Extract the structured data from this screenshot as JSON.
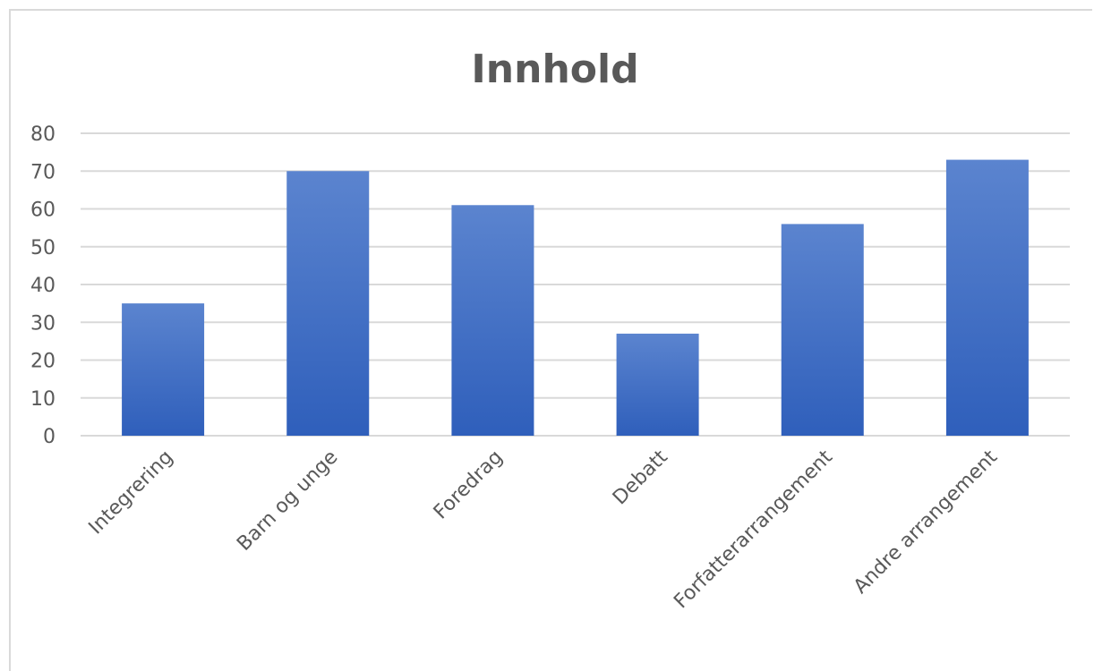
{
  "chart_data": {
    "type": "bar",
    "title": "Innhold",
    "categories": [
      "Integrering",
      "Barn og unge",
      "Foredrag",
      "Debatt",
      "Forfatterarrangement",
      "Andre arrangement"
    ],
    "values": [
      35,
      70,
      61,
      27,
      56,
      73
    ],
    "ylim": [
      0,
      80
    ],
    "yticks": [
      "0",
      "10",
      "20",
      "30",
      "40",
      "50",
      "60",
      "70",
      "80"
    ],
    "xlabel": "",
    "ylabel": "",
    "grid": true,
    "legend": "none",
    "colors": {
      "bar_top": "#5b84cf",
      "bar_bottom": "#2f5fbb",
      "grid": "#d9d9d9",
      "text": "#595959"
    }
  }
}
